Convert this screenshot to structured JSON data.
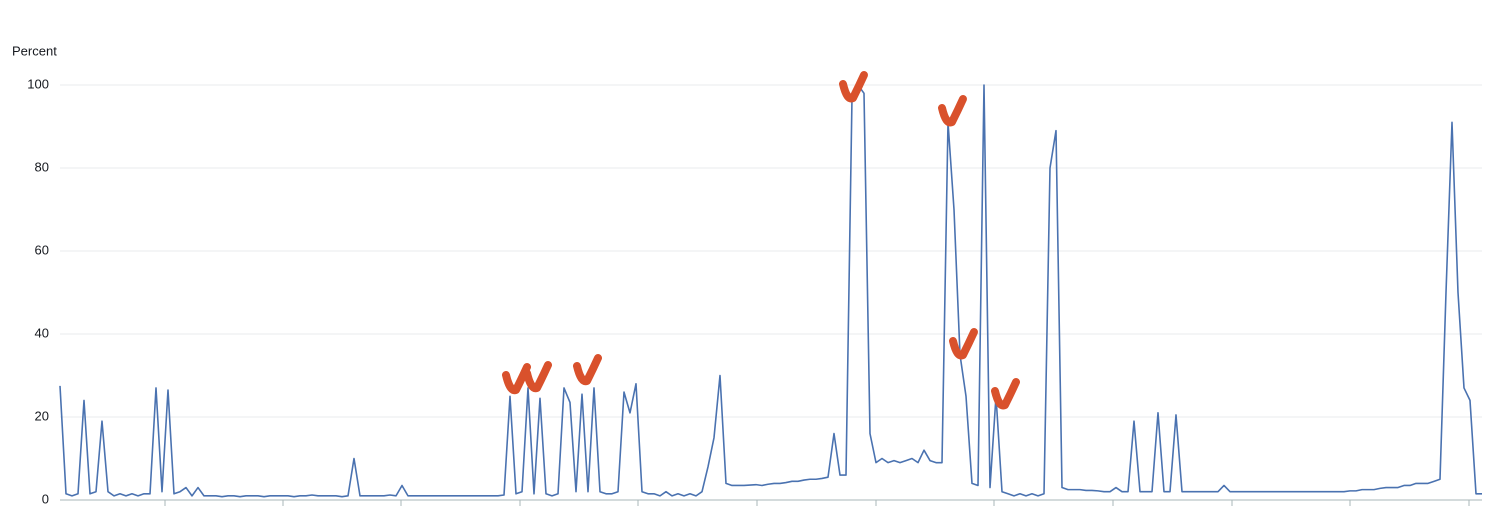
{
  "chart_data": {
    "type": "line",
    "y_label": "Percent",
    "color": "#4a72b0",
    "grid": true,
    "ylim": [
      0,
      100
    ],
    "yticks": [
      0,
      20,
      40,
      60,
      80,
      100
    ],
    "values": [
      27.5,
      1.5,
      1,
      1.5,
      24,
      1.5,
      2,
      19,
      2,
      1,
      1.5,
      1,
      1.5,
      1,
      1.5,
      1.5,
      27,
      2,
      26.5,
      1.5,
      2,
      3,
      1,
      3,
      1,
      1,
      1,
      0.8,
      1,
      1,
      0.8,
      1,
      1,
      1,
      0.8,
      1,
      1,
      1,
      1,
      0.8,
      1,
      1,
      1.2,
      1,
      1,
      1,
      1,
      0.8,
      1,
      10,
      1,
      1,
      1,
      1,
      1,
      1.2,
      1,
      3.5,
      1,
      1,
      1,
      1,
      1,
      1,
      1,
      1,
      1,
      1,
      1,
      1,
      1,
      1,
      1,
      1,
      1.2,
      25,
      1.5,
      2,
      27,
      1.5,
      24.5,
      1.5,
      1,
      1.5,
      27,
      23.5,
      2,
      25.5,
      2,
      27,
      2,
      1.5,
      1.5,
      2,
      26,
      21,
      28,
      2,
      1.5,
      1.5,
      1,
      2,
      1,
      1.5,
      1,
      1.5,
      1,
      2,
      8,
      15,
      30,
      4,
      3.5,
      3.5,
      3.5,
      3.6,
      3.7,
      3.5,
      3.8,
      4,
      4,
      4.2,
      4.5,
      4.5,
      4.8,
      5,
      5,
      5.2,
      5.5,
      16,
      6,
      6,
      97,
      100,
      98,
      16,
      9,
      10,
      9,
      9.5,
      9,
      9.5,
      10,
      9,
      12,
      9.5,
      9,
      9,
      91,
      70,
      35,
      25,
      4,
      3.5,
      100,
      3,
      25,
      2,
      1.5,
      1,
      1.5,
      1,
      1.5,
      1,
      1.5,
      80,
      89,
      3,
      2.5,
      2.5,
      2.5,
      2.3,
      2.3,
      2.2,
      2,
      2,
      3,
      2,
      2,
      19,
      2,
      2,
      2,
      21,
      2,
      2,
      20.5,
      2,
      2,
      2,
      2,
      2,
      2,
      2,
      3.5,
      2,
      2,
      2,
      2,
      2,
      2,
      2,
      2,
      2,
      2,
      2,
      2,
      2,
      2,
      2,
      2,
      2,
      2,
      2,
      2,
      2.2,
      2.2,
      2.5,
      2.5,
      2.5,
      2.8,
      3,
      3,
      3,
      3.5,
      3.5,
      4,
      4,
      4,
      4.5,
      5,
      50,
      91,
      50,
      27,
      24,
      1.5,
      1.5
    ]
  }
}
